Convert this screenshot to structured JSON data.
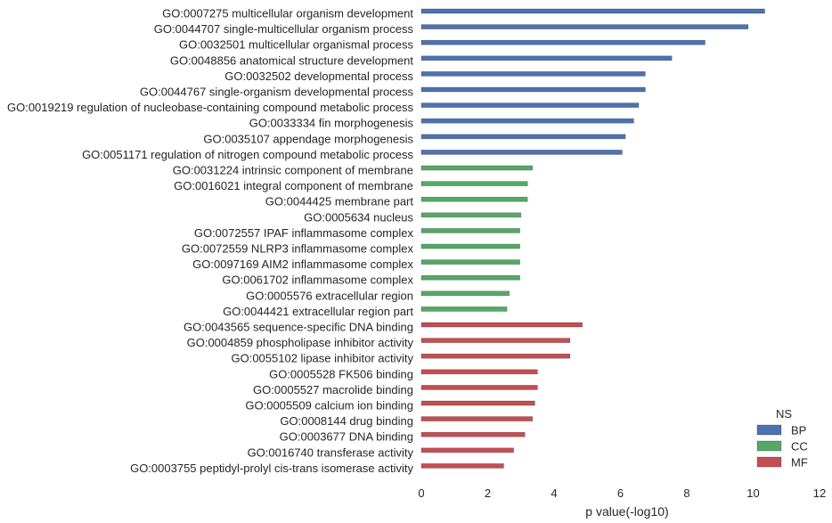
{
  "chart_data": {
    "type": "bar",
    "orientation": "horizontal",
    "xlabel": "p value(-log10)",
    "ylabel": "",
    "xlim": [
      0,
      12
    ],
    "xticks": [
      0,
      2,
      4,
      6,
      8,
      10,
      12
    ],
    "grid": false,
    "legend": {
      "title": "NS",
      "placement": "bottom-right",
      "entries": [
        {
          "name": "BP",
          "color": "#4c72b0"
        },
        {
          "name": "CC",
          "color": "#55a868"
        },
        {
          "name": "MF",
          "color": "#c44e52"
        }
      ]
    },
    "categories": [
      {
        "label": "GO:0007275 multicellular organism development",
        "value": 10.35,
        "ns": "BP"
      },
      {
        "label": "GO:0044707 single-multicellular organism process",
        "value": 9.85,
        "ns": "BP"
      },
      {
        "label": "GO:0032501 multicellular organismal process",
        "value": 8.55,
        "ns": "BP"
      },
      {
        "label": "GO:0048856 anatomical structure development",
        "value": 7.55,
        "ns": "BP"
      },
      {
        "label": "GO:0032502 developmental process",
        "value": 6.75,
        "ns": "BP"
      },
      {
        "label": "GO:0044767 single-organism developmental process",
        "value": 6.75,
        "ns": "BP"
      },
      {
        "label": "GO:0019219 regulation of nucleobase-containing compound metabolic process",
        "value": 6.55,
        "ns": "BP"
      },
      {
        "label": "GO:0033334 fin morphogenesis",
        "value": 6.4,
        "ns": "BP"
      },
      {
        "label": "GO:0035107 appendage morphogenesis",
        "value": 6.15,
        "ns": "BP"
      },
      {
        "label": "GO:0051171 regulation of nitrogen compound metabolic process",
        "value": 6.05,
        "ns": "BP"
      },
      {
        "label": "GO:0031224 intrinsic component of membrane",
        "value": 3.35,
        "ns": "CC"
      },
      {
        "label": "GO:0016021 integral component of membrane",
        "value": 3.2,
        "ns": "CC"
      },
      {
        "label": "GO:0044425 membrane part",
        "value": 3.2,
        "ns": "CC"
      },
      {
        "label": "GO:0005634 nucleus",
        "value": 3.0,
        "ns": "CC"
      },
      {
        "label": "GO:0072557 IPAF inflammasome complex",
        "value": 2.97,
        "ns": "CC"
      },
      {
        "label": "GO:0072559 NLRP3 inflammasome complex",
        "value": 2.97,
        "ns": "CC"
      },
      {
        "label": "GO:0097169 AIM2 inflammasome complex",
        "value": 2.97,
        "ns": "CC"
      },
      {
        "label": "GO:0061702 inflammasome complex",
        "value": 2.97,
        "ns": "CC"
      },
      {
        "label": "GO:0005576 extracellular region",
        "value": 2.65,
        "ns": "CC"
      },
      {
        "label": "GO:0044421 extracellular region part",
        "value": 2.58,
        "ns": "CC"
      },
      {
        "label": "GO:0043565 sequence-specific DNA binding",
        "value": 4.85,
        "ns": "MF"
      },
      {
        "label": "GO:0004859 phospholipase inhibitor activity",
        "value": 4.48,
        "ns": "MF"
      },
      {
        "label": "GO:0055102 lipase inhibitor activity",
        "value": 4.48,
        "ns": "MF"
      },
      {
        "label": "GO:0005528 FK506 binding",
        "value": 3.5,
        "ns": "MF"
      },
      {
        "label": "GO:0005527 macrolide binding",
        "value": 3.5,
        "ns": "MF"
      },
      {
        "label": "GO:0005509 calcium ion binding",
        "value": 3.42,
        "ns": "MF"
      },
      {
        "label": "GO:0008144 drug binding",
        "value": 3.35,
        "ns": "MF"
      },
      {
        "label": "GO:0003677 DNA binding",
        "value": 3.12,
        "ns": "MF"
      },
      {
        "label": "GO:0016740 transferase activity",
        "value": 2.78,
        "ns": "MF"
      },
      {
        "label": "GO:0003755 peptidyl-prolyl cis-trans isomerase activity",
        "value": 2.48,
        "ns": "MF"
      }
    ]
  }
}
